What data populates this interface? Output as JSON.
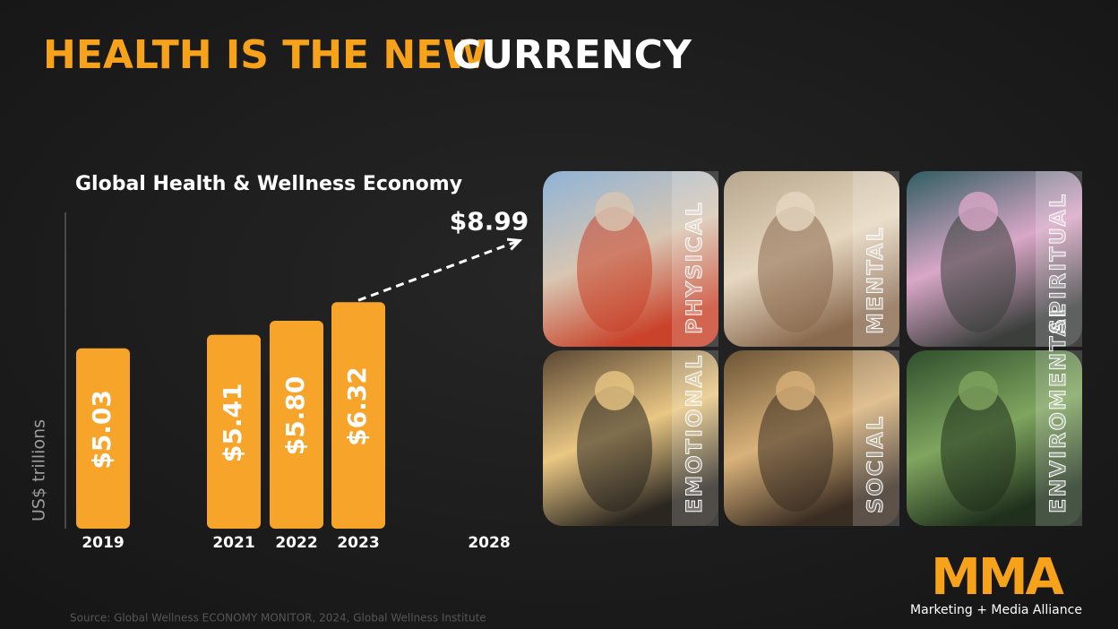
{
  "header": {
    "title_accent": "HEALTH IS THE NEW",
    "title_rest": "CURRENCY"
  },
  "chart_data": {
    "type": "bar",
    "title": "Global Health & Wellness Economy",
    "y_label": "US$ trillions",
    "categories": [
      "2019",
      "2021",
      "2022",
      "2023",
      "2028"
    ],
    "values": [
      5.03,
      5.41,
      5.8,
      6.32,
      8.99
    ],
    "value_labels": [
      "$5.03",
      "$5.41",
      "$5.80",
      "$6.32",
      "$8.99"
    ],
    "color": "#f7a42a"
  },
  "panels": [
    {
      "label": "PHYSICAL"
    },
    {
      "label": "MENTAL"
    },
    {
      "label": "SPIRITUAL"
    },
    {
      "label": "EMOTIONAL"
    },
    {
      "label": "SOCIAL"
    },
    {
      "label": "ENVIROMENTAL"
    }
  ],
  "logo": {
    "mark": "MMA",
    "name": "Marketing + Media Alliance"
  },
  "source": "Source: Global Wellness ECONOMY MONITOR, 2024, Global Wellness Institute"
}
